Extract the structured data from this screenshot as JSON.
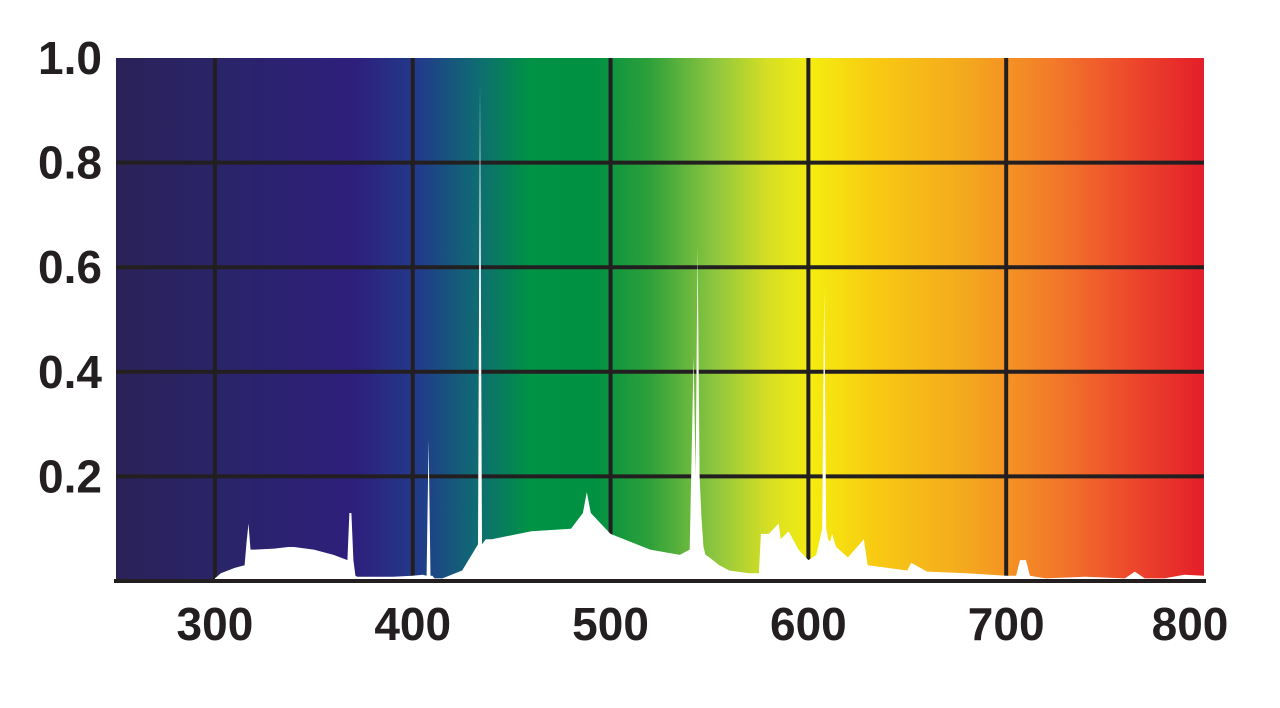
{
  "chart_data": {
    "type": "area",
    "title": "",
    "xlabel": "",
    "ylabel": "",
    "xlim": [
      250,
      800
    ],
    "ylim": [
      0,
      1.0
    ],
    "x_ticks": [
      300,
      400,
      500,
      600,
      700,
      800
    ],
    "x_tick_labels": [
      "300",
      "400",
      "500",
      "600",
      "700",
      "800"
    ],
    "y_ticks": [
      0.2,
      0.4,
      0.6,
      0.8,
      1.0
    ],
    "y_tick_labels": [
      "0.2",
      "0.4",
      "0.6",
      "0.8",
      "1.0"
    ],
    "grid": true,
    "background": "visible-spectrum gradient (violet to red)",
    "series": [
      {
        "color": "#ffffff",
        "x": [
          300,
          303,
          310,
          315,
          316,
          317,
          318,
          320,
          330,
          337,
          340,
          350,
          360,
          367,
          368,
          369,
          370,
          371,
          372,
          390,
          400,
          405,
          407,
          408,
          409,
          410,
          411,
          415,
          425,
          433,
          434,
          435,
          436,
          437,
          440,
          460,
          480,
          486,
          488,
          490,
          500,
          520,
          535,
          540,
          542,
          543,
          544,
          545,
          546,
          547,
          548,
          550,
          555,
          560,
          570,
          575,
          576,
          580,
          585,
          586,
          590,
          595,
          600,
          604,
          607,
          608,
          609,
          610,
          611,
          612,
          614,
          620,
          628,
          630,
          640,
          650,
          652,
          660,
          680,
          700,
          705,
          707,
          710,
          712,
          720,
          740,
          760,
          765,
          770,
          780,
          790,
          800
        ],
        "y": [
          0.005,
          0.015,
          0.025,
          0.03,
          0.075,
          0.11,
          0.06,
          0.06,
          0.062,
          0.065,
          0.065,
          0.06,
          0.05,
          0.04,
          0.13,
          0.13,
          0.04,
          0.01,
          0.008,
          0.008,
          0.01,
          0.012,
          0.01,
          0.27,
          0.01,
          0.01,
          0.005,
          0.005,
          0.02,
          0.07,
          0.95,
          0.07,
          0.075,
          0.08,
          0.08,
          0.095,
          0.1,
          0.13,
          0.17,
          0.13,
          0.09,
          0.06,
          0.05,
          0.06,
          0.43,
          0.2,
          0.64,
          0.2,
          0.12,
          0.065,
          0.05,
          0.045,
          0.03,
          0.02,
          0.015,
          0.015,
          0.09,
          0.09,
          0.11,
          0.08,
          0.095,
          0.06,
          0.04,
          0.05,
          0.1,
          0.56,
          0.1,
          0.08,
          0.075,
          0.09,
          0.065,
          0.045,
          0.08,
          0.03,
          0.025,
          0.02,
          0.035,
          0.018,
          0.015,
          0.01,
          0.01,
          0.04,
          0.04,
          0.01,
          0.005,
          0.008,
          0.005,
          0.018,
          0.005,
          0.005,
          0.012,
          0.01
        ]
      }
    ]
  }
}
